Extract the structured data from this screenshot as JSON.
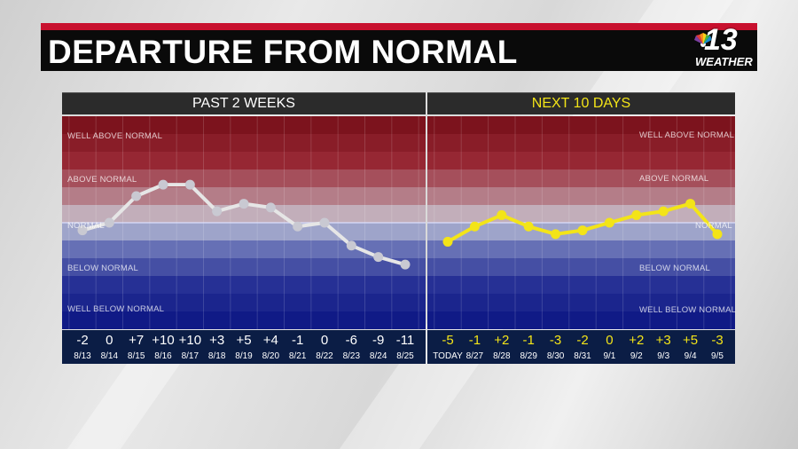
{
  "title": "DEPARTURE FROM NORMAL",
  "logo": {
    "number": "13",
    "text": "WEATHER"
  },
  "band_labels": [
    "WELL ABOVE NORMAL",
    "ABOVE NORMAL",
    "NORMAL",
    "BELOW NORMAL",
    "WELL BELOW NORMAL"
  ],
  "colors": {
    "past_line": "#e6e6e6",
    "forecast_line": "#f3e418",
    "header_red": "#c8102e"
  },
  "chart_data": [
    {
      "type": "line",
      "title": "PAST 2 WEEKS",
      "categories": [
        "8/13",
        "8/14",
        "8/15",
        "8/16",
        "8/17",
        "8/18",
        "8/19",
        "8/20",
        "8/21",
        "8/22",
        "8/23",
        "8/24",
        "8/25"
      ],
      "labels": [
        "-2",
        "0",
        "+7",
        "+10",
        "+10",
        "+3",
        "+5",
        "+4",
        "-1",
        "0",
        "-6",
        "-9",
        "-11"
      ],
      "values": [
        -2,
        0,
        7,
        10,
        10,
        3,
        5,
        4,
        -1,
        0,
        -6,
        -9,
        -11
      ],
      "ylim": [
        -28,
        28
      ],
      "grid": true
    },
    {
      "type": "line",
      "title": "NEXT 10 DAYS",
      "categories": [
        "TODAY",
        "8/27",
        "8/28",
        "8/29",
        "8/30",
        "8/31",
        "9/1",
        "9/2",
        "9/3",
        "9/4",
        "9/5"
      ],
      "labels": [
        "-5",
        "-1",
        "+2",
        "-1",
        "-3",
        "-2",
        "0",
        "+2",
        "+3",
        "+5",
        "-3"
      ],
      "values": [
        -5,
        -1,
        2,
        -1,
        -3,
        -2,
        0,
        2,
        3,
        5,
        -3
      ],
      "ylim": [
        -28,
        28
      ],
      "grid": true
    }
  ]
}
